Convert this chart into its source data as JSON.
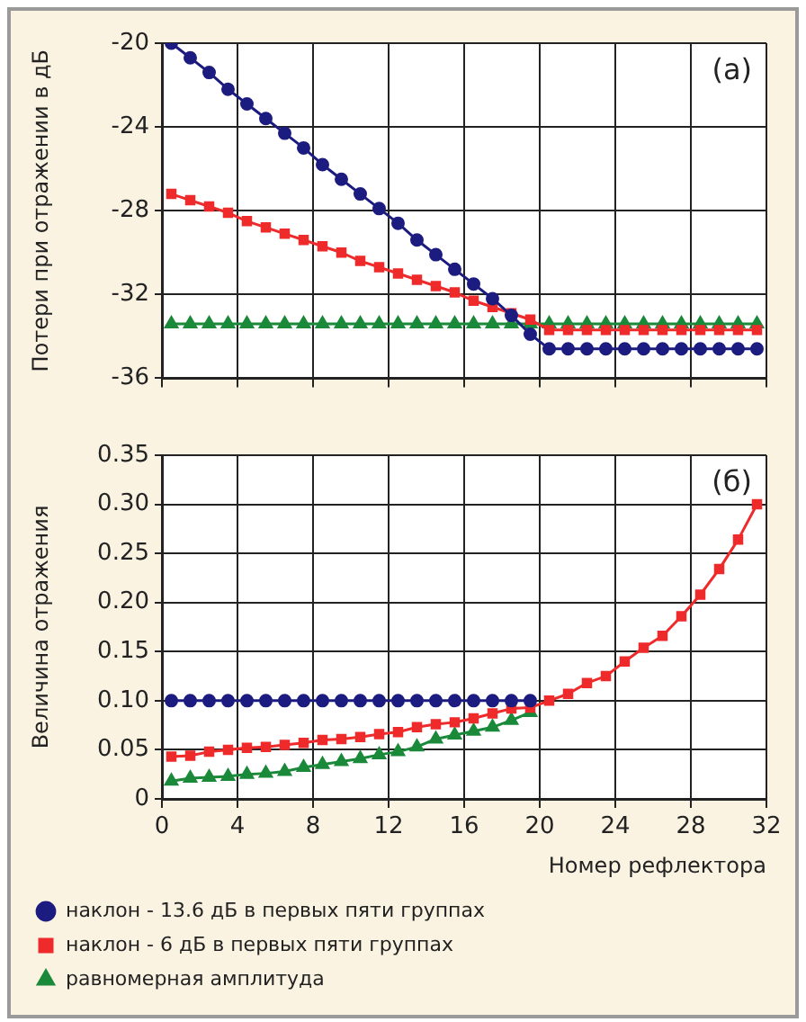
{
  "chart_data": [
    {
      "type": "line",
      "ylabel": "Потери при отражении в дБ",
      "annotations": [
        "(a)"
      ],
      "xlim": [
        0,
        32
      ],
      "xticks": [
        0,
        4,
        8,
        12,
        16,
        20,
        24,
        28,
        32
      ],
      "ylim": [
        -36,
        -20
      ],
      "yticks": [
        -20,
        -24,
        -28,
        -32,
        -36
      ],
      "tick_labels": "y",
      "grid": true,
      "legend": false,
      "line_style": "solid",
      "x": [
        0.5,
        1.5,
        2.5,
        3.5,
        4.5,
        5.5,
        6.5,
        7.5,
        8.5,
        9.5,
        10.5,
        11.5,
        12.5,
        13.5,
        14.5,
        15.5,
        16.5,
        17.5,
        18.5,
        19.5,
        20.5,
        21.5,
        22.5,
        23.5,
        24.5,
        25.5,
        26.5,
        27.5,
        28.5,
        29.5,
        30.5,
        31.5
      ],
      "series": [
        {
          "color": "#1c1c80",
          "marker": "circle",
          "values": [
            -20,
            -20.7,
            -21.4,
            -22.2,
            -22.9,
            -23.6,
            -24.3,
            -25,
            -25.8,
            -26.5,
            -27.2,
            -27.9,
            -28.6,
            -29.4,
            -30.1,
            -30.8,
            -31.5,
            -32.2,
            -33,
            -33.9,
            -34.6,
            -34.6,
            -34.6,
            -34.6,
            -34.6,
            -34.6,
            -34.6,
            -34.6,
            -34.6,
            -34.6,
            -34.6,
            -34.6
          ]
        },
        {
          "color": "#ee2a2a",
          "marker": "square",
          "values": [
            -27.2,
            -27.5,
            -27.8,
            -28.1,
            -28.5,
            -28.8,
            -29.1,
            -29.4,
            -29.7,
            -30,
            -30.4,
            -30.7,
            -31,
            -31.3,
            -31.6,
            -31.9,
            -32.3,
            -32.6,
            -32.9,
            -33.2,
            -33.7,
            -33.7,
            -33.7,
            -33.7,
            -33.7,
            -33.7,
            -33.7,
            -33.7,
            -33.7,
            -33.7,
            -33.7,
            -33.7
          ]
        },
        {
          "color": "#1a8a3a",
          "marker": "triangle",
          "values": [
            -33.4,
            -33.4,
            -33.4,
            -33.4,
            -33.4,
            -33.4,
            -33.4,
            -33.4,
            -33.4,
            -33.4,
            -33.4,
            -33.4,
            -33.4,
            -33.4,
            -33.4,
            -33.4,
            -33.4,
            -33.4,
            -33.4,
            -33.4,
            -33.4,
            -33.4,
            -33.4,
            -33.4,
            -33.4,
            -33.4,
            -33.4,
            -33.4,
            -33.4,
            -33.4,
            -33.4,
            -33.4
          ]
        }
      ]
    },
    {
      "type": "line",
      "xlabel": "Номер рефлектора",
      "ylabel": "Величина отражения",
      "annotations": [
        "(б)"
      ],
      "xlim": [
        0,
        32
      ],
      "xticks": [
        0,
        4,
        8,
        12,
        16,
        20,
        24,
        28,
        32
      ],
      "ylim": [
        0,
        0.35
      ],
      "yticks": [
        {
          "value": 0,
          "label": "0"
        },
        {
          "value": 0.05,
          "label": "0.05"
        },
        {
          "value": 0.1,
          "label": "0.10"
        },
        {
          "value": 0.15,
          "label": "0.15"
        },
        {
          "value": 0.2,
          "label": "0.20"
        },
        {
          "value": 0.25,
          "label": "0.25"
        },
        {
          "value": 0.3,
          "label": "0.30"
        },
        {
          "value": 0.35,
          "label": "0.35"
        }
      ],
      "grid": true,
      "legend": "bottom",
      "line_style": "solid",
      "x": [
        0.5,
        1.5,
        2.5,
        3.5,
        4.5,
        5.5,
        6.5,
        7.5,
        8.5,
        9.5,
        10.5,
        11.5,
        12.5,
        13.5,
        14.5,
        15.5,
        16.5,
        17.5,
        18.5,
        19.5,
        20.5,
        21.5,
        22.5,
        23.5,
        24.5,
        25.5,
        26.5,
        27.5,
        28.5,
        29.5,
        30.5,
        31.5
      ],
      "series": [
        {
          "name": "наклон - 13.6 дБ в первых пяти группах",
          "color": "#1c1c80",
          "marker": "circle",
          "values": [
            0.1,
            0.1,
            0.1,
            0.1,
            0.1,
            0.1,
            0.1,
            0.1,
            0.1,
            0.1,
            0.1,
            0.1,
            0.1,
            0.1,
            0.1,
            0.1,
            0.1,
            0.1,
            0.1,
            0.1,
            null,
            null,
            null,
            null,
            null,
            null,
            null,
            null,
            null,
            null,
            null,
            null
          ]
        },
        {
          "name": "наклон - 6 дБ в первых пяти группах",
          "color": "#ee2a2a",
          "marker": "square",
          "values": [
            0.043,
            0.044,
            0.048,
            0.05,
            0.052,
            0.053,
            0.055,
            0.057,
            0.06,
            0.061,
            0.063,
            0.066,
            0.068,
            0.073,
            0.076,
            0.078,
            0.082,
            0.087,
            0.092,
            0.093,
            0.1,
            0.107,
            0.118,
            0.125,
            0.14,
            0.154,
            0.166,
            0.186,
            0.208,
            0.234,
            0.264,
            0.3
          ]
        },
        {
          "name": "равномерная амплитуда",
          "color": "#1a8a3a",
          "marker": "triangle",
          "values": [
            0.018,
            0.021,
            0.022,
            0.023,
            0.025,
            0.026,
            0.028,
            0.032,
            0.035,
            0.038,
            0.041,
            0.045,
            0.048,
            0.053,
            0.061,
            0.065,
            0.069,
            0.073,
            0.08,
            0.088,
            null,
            null,
            null,
            null,
            null,
            null,
            null,
            null,
            null,
            null,
            null,
            null
          ]
        }
      ]
    }
  ]
}
